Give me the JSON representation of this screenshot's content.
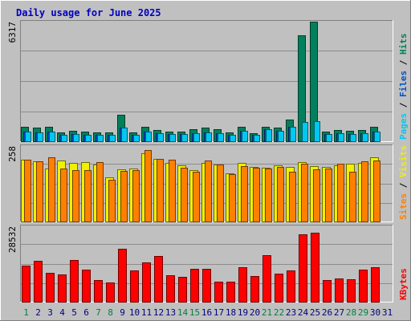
{
  "chart_data": {
    "type": "bar",
    "title": "Daily usage for June 2025",
    "categories": [
      "1",
      "2",
      "3",
      "4",
      "5",
      "6",
      "7",
      "8",
      "9",
      "10",
      "11",
      "12",
      "13",
      "14",
      "15",
      "16",
      "17",
      "18",
      "19",
      "20",
      "21",
      "22",
      "23",
      "24",
      "25",
      "26",
      "27",
      "28",
      "29",
      "30",
      "31"
    ],
    "weekend_categories": [
      "1",
      "7",
      "8",
      "14",
      "15",
      "21",
      "22",
      "28",
      "29"
    ],
    "panels": [
      {
        "id": "hits-files-pages",
        "max_label": "6317",
        "ymax": 6317,
        "axis_label_parts": [
          {
            "text": "Pages",
            "color": "#00c8f0"
          },
          {
            "text": " / ",
            "color": "#000000"
          },
          {
            "text": "Files",
            "color": "#0050c8"
          },
          {
            "text": " / ",
            "color": "#000000"
          },
          {
            "text": "Hits",
            "color": "#00805c"
          }
        ],
        "series": [
          {
            "name": "Hits",
            "color": "#00805c",
            "values": [
              780,
              700,
              760,
              470,
              560,
              520,
              480,
              480,
              1400,
              450,
              780,
              610,
              520,
              520,
              640,
              700,
              640,
              480,
              760,
              440,
              780,
              700,
              1130,
              5600,
              6317,
              520,
              610,
              570,
              610,
              760,
              0
            ]
          },
          {
            "name": "Files",
            "color": "#0050c8",
            "values": [
              520,
              470,
              520,
              350,
              390,
              350,
              330,
              330,
              720,
              330,
              520,
              440,
              390,
              390,
              430,
              470,
              430,
              330,
              560,
              330,
              640,
              560,
              780,
              0,
              0,
              390,
              440,
              390,
              430,
              520,
              0
            ]
          },
          {
            "name": "Pages",
            "color": "#00c8f0",
            "values": [
              520,
              470,
              520,
              350,
              390,
              350,
              330,
              330,
              720,
              330,
              520,
              440,
              390,
              390,
              430,
              470,
              430,
              330,
              560,
              330,
              640,
              560,
              780,
              1000,
              1040,
              390,
              440,
              390,
              430,
              520,
              0
            ]
          }
        ]
      },
      {
        "id": "visits-sites",
        "max_label": "258",
        "ymax": 258,
        "axis_label_parts": [
          {
            "text": "Sites",
            "color": "#ff8000"
          },
          {
            "text": " / ",
            "color": "#000000"
          },
          {
            "text": "Visits",
            "color": "#f0f000"
          }
        ],
        "series": [
          {
            "name": "Visits",
            "color": "#f0f000",
            "values": [
              210,
              205,
              182,
              208,
              199,
              202,
              195,
              152,
              178,
              180,
              232,
              214,
              200,
              192,
              176,
              200,
              194,
              164,
              200,
              186,
              184,
              192,
              188,
              202,
              190,
              186,
              192,
              198,
              200,
              220,
              0
            ]
          },
          {
            "name": "Sites",
            "color": "#ff8000",
            "values": [
              210,
              205,
              220,
              180,
              175,
              175,
              203,
              142,
              173,
              177,
              245,
              214,
              212,
              183,
              171,
              208,
              195,
              162,
              190,
              185,
              182,
              186,
              170,
              197,
              178,
              182,
              197,
              170,
              205,
              208,
              0
            ]
          }
        ]
      },
      {
        "id": "kbytes",
        "max_label": "28532",
        "ymax": 28532,
        "axis_label_parts": [
          {
            "text": "KBytes",
            "color": "#ff0000"
          }
        ],
        "series": [
          {
            "name": "KBytes",
            "color": "#ff0000",
            "values": [
              13740,
              15560,
              10780,
              10250,
              15850,
              12050,
              8290,
              7160,
              20040,
              11720,
              14900,
              17230,
              10150,
              9530,
              12340,
              12340,
              7730,
              7450,
              13200,
              9650,
              17700,
              10480,
              11870,
              25360,
              26050,
              8050,
              8880,
              8590,
              12240,
              13000,
              0
            ]
          }
        ]
      }
    ],
    "grid": true
  }
}
